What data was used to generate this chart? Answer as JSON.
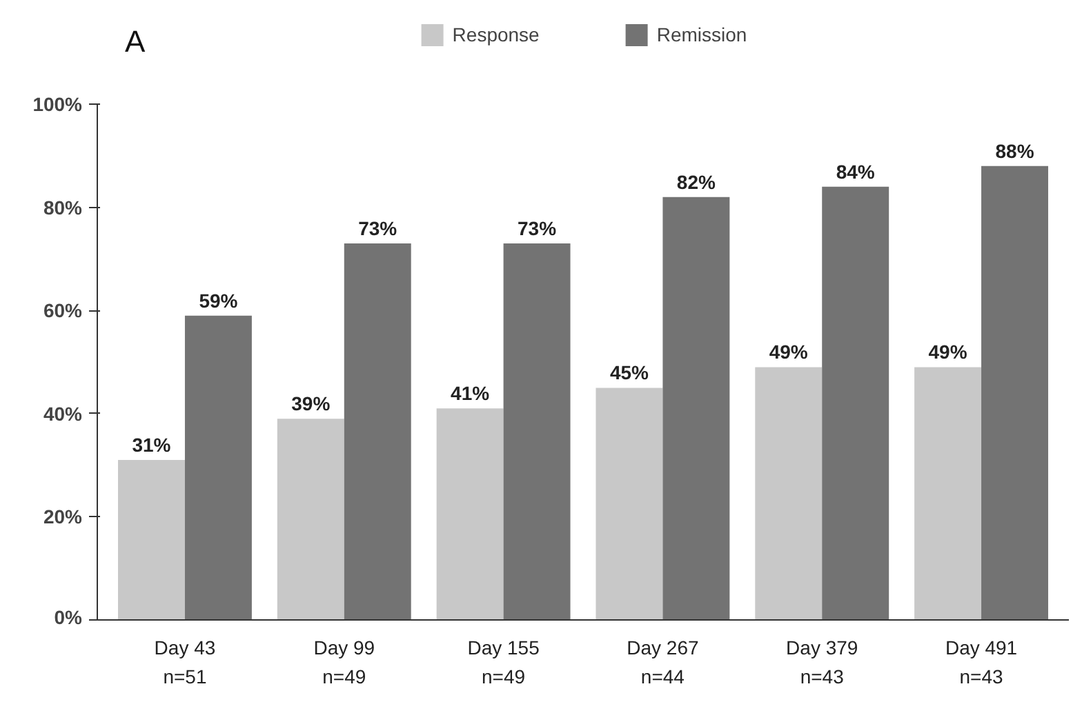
{
  "chart_data": {
    "type": "bar",
    "title": "A",
    "categories": [
      "Day 43\nn=51",
      "Day 99\nn=49",
      "Day 155\nn=49",
      "Day 267\nn=44",
      "Day 379\nn=43",
      "Day 491\nn=43"
    ],
    "series": [
      {
        "name": "Response",
        "color": "#c8c8c8",
        "values": [
          31,
          39,
          41,
          45,
          49,
          49
        ],
        "value_labels": [
          "31%",
          "39%",
          "41%",
          "45%",
          "49%",
          "49%"
        ]
      },
      {
        "name": "Remission",
        "color": "#737373",
        "values": [
          59,
          73,
          73,
          82,
          84,
          88
        ],
        "value_labels": [
          "59%",
          "73%",
          "73%",
          "82%",
          "84%",
          "88%"
        ]
      }
    ],
    "ylim": [
      0,
      100
    ],
    "yticks": [
      {
        "value": 0,
        "label": "0%"
      },
      {
        "value": 20,
        "label": "20%"
      },
      {
        "value": 40,
        "label": "40%"
      },
      {
        "value": 60,
        "label": "60%"
      },
      {
        "value": 80,
        "label": "80%"
      },
      {
        "value": 100,
        "label": "100%"
      }
    ],
    "grid": false,
    "legend": "top"
  }
}
